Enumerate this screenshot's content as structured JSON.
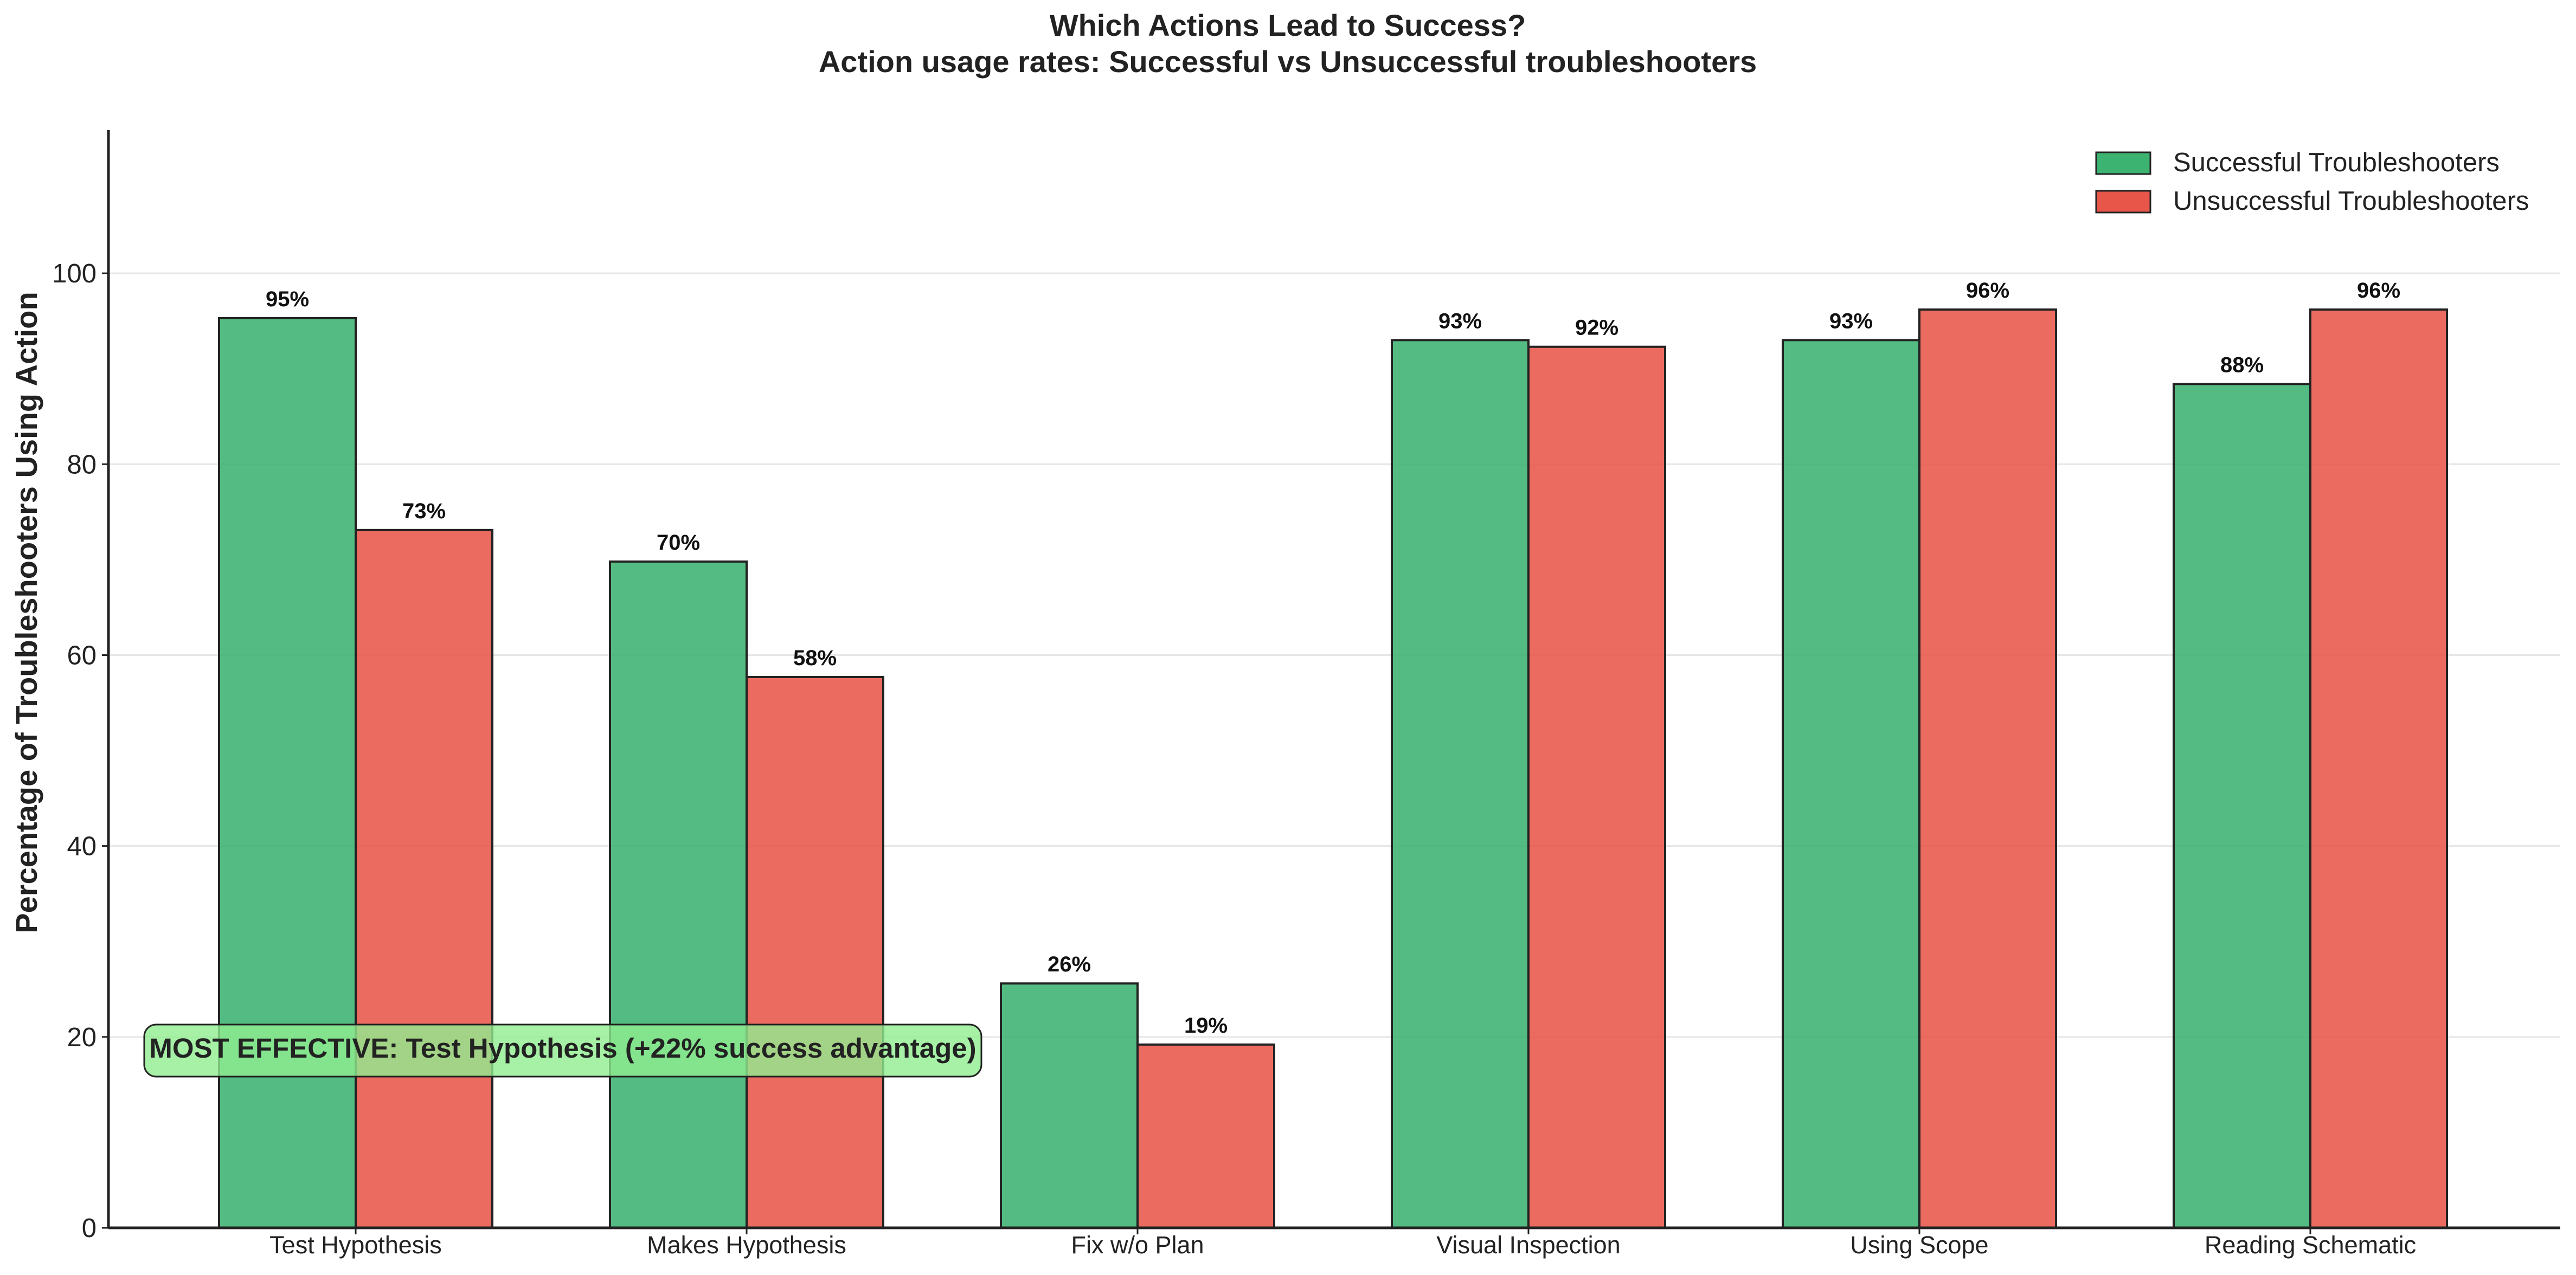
{
  "chart_data": {
    "type": "bar",
    "title": "Which Actions Lead to Success?",
    "subtitle": "Action usage rates: Successful vs Unsuccessful troubleshooters",
    "xlabel": "",
    "ylabel": "Percentage of Troubleshooters Using Action",
    "ylim": [
      0,
      115
    ],
    "yticks": [
      0,
      20,
      40,
      60,
      80,
      100
    ],
    "grid": "horizontal",
    "legend_position": "top-right",
    "categories": [
      "Test Hypothesis",
      "Makes Hypothesis",
      "Fix w/o Plan",
      "Visual Inspection",
      "Using Scope",
      "Reading Schematic"
    ],
    "series": [
      {
        "name": "Successful Troubleshooters",
        "color": "#3cb371",
        "values": [
          95.3,
          69.8,
          25.6,
          93.0,
          93.0,
          88.4
        ],
        "labels": [
          "95%",
          "70%",
          "26%",
          "93%",
          "93%",
          "88%"
        ]
      },
      {
        "name": "Unsuccessful Troubleshooters",
        "color": "#e8564a",
        "values": [
          73.1,
          57.7,
          19.2,
          92.3,
          96.2,
          96.2
        ],
        "labels": [
          "73%",
          "58%",
          "19%",
          "92%",
          "96%",
          "96%"
        ]
      }
    ],
    "annotation": {
      "text": "MOST EFFECTIVE: Test Hypothesis (+22% success advantage)",
      "color": "#90ee90"
    }
  }
}
